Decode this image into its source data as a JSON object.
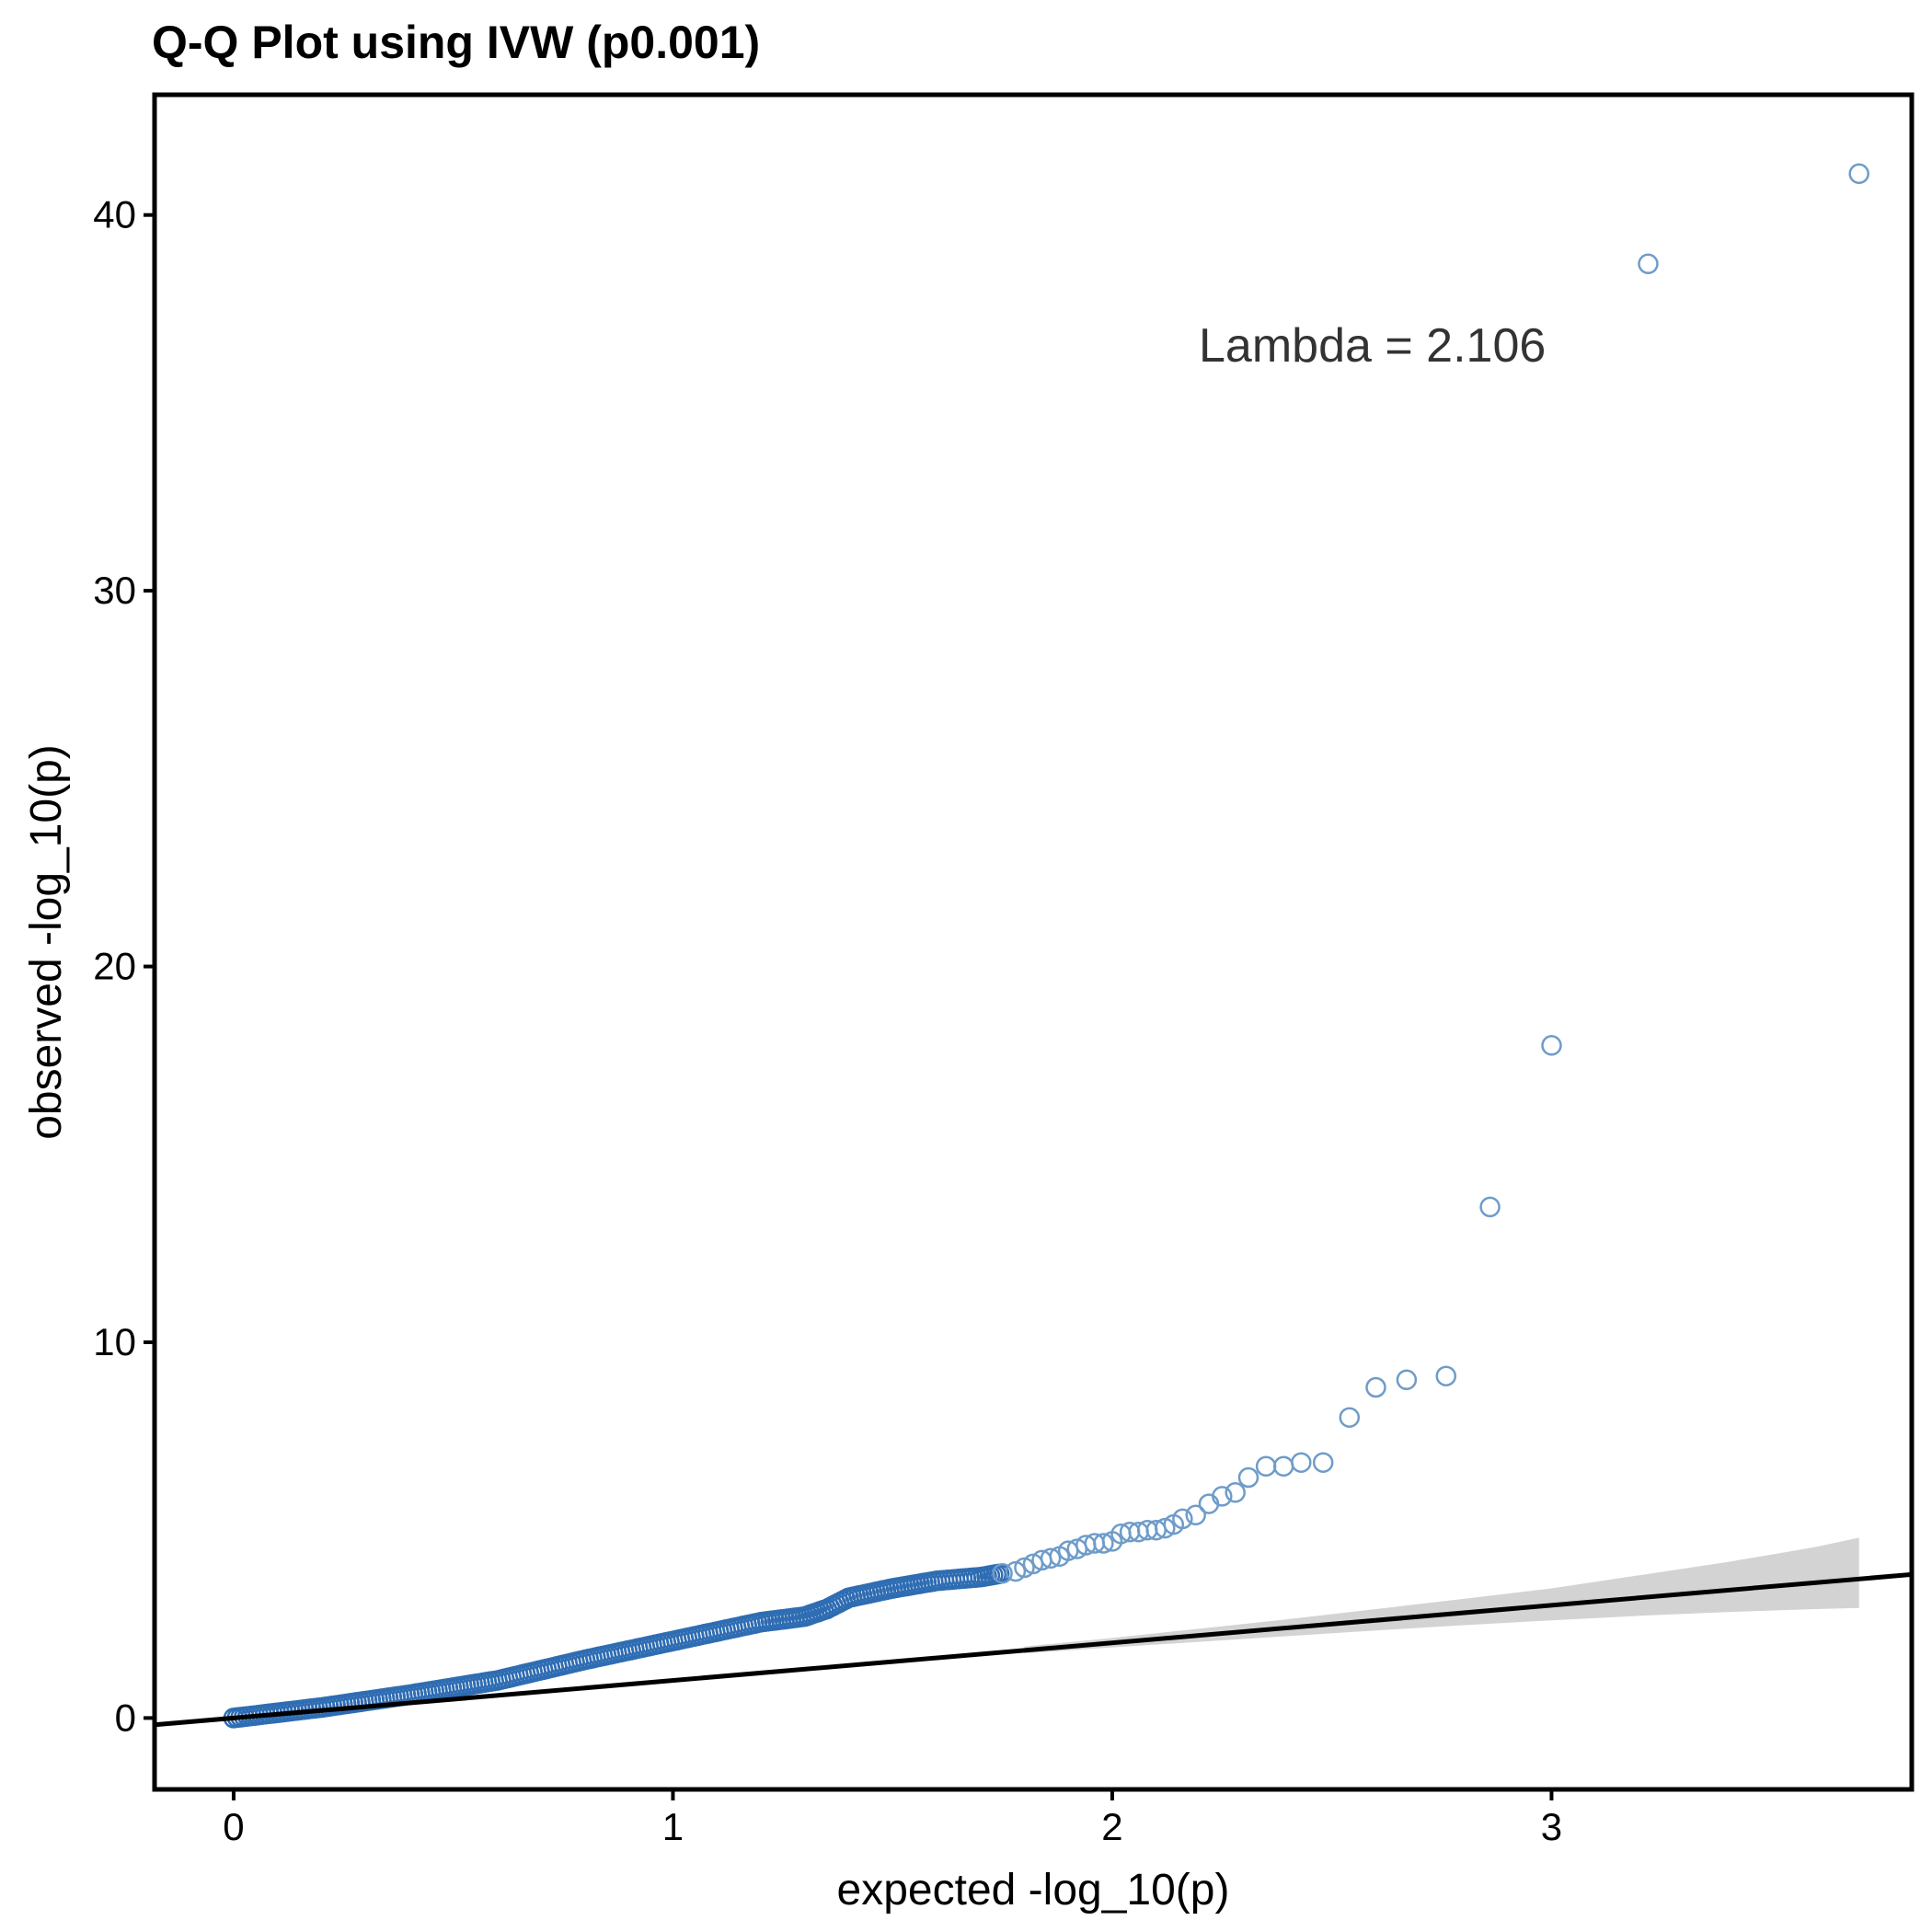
{
  "chart_data": {
    "type": "scatter",
    "title": "Q-Q Plot using IVW (p0.001)",
    "xlabel": "expected -log_10(p)",
    "ylabel": "observed -log_10(p)",
    "xlim": [
      -0.18,
      3.82
    ],
    "ylim": [
      -1.9,
      43.2
    ],
    "x_ticks": [
      "0",
      "1",
      "2",
      "3"
    ],
    "y_ticks": [
      "0",
      "10",
      "20",
      "30",
      "40"
    ],
    "annotation": "Lambda = 2.106",
    "point_color": "#2f6db3",
    "line_color": "#000000",
    "band_color": "#d3d3d3",
    "reference_line": {
      "x": [
        -0.18,
        3.82
      ],
      "y": [
        -0.18,
        3.82
      ]
    },
    "confidence_band": {
      "x": [
        1.8,
        2.0,
        2.2,
        2.4,
        2.6,
        2.8,
        3.0,
        3.2,
        3.4,
        3.6,
        3.7
      ],
      "lower": [
        1.72,
        1.88,
        2.03,
        2.18,
        2.33,
        2.47,
        2.6,
        2.72,
        2.82,
        2.9,
        2.93
      ],
      "upper": [
        1.9,
        2.13,
        2.38,
        2.63,
        2.9,
        3.17,
        3.45,
        3.8,
        4.15,
        4.55,
        4.8
      ]
    },
    "sparse_points": {
      "x": [
        1.75,
        1.78,
        1.8,
        1.82,
        1.84,
        1.86,
        1.88,
        1.9,
        1.92,
        1.94,
        1.96,
        1.98,
        2.0,
        2.02,
        2.04,
        2.06,
        2.08,
        2.1,
        2.12,
        2.14,
        2.16,
        2.19,
        2.22,
        2.25,
        2.28,
        2.31,
        2.35,
        2.39,
        2.43,
        2.48,
        2.54,
        2.6,
        2.67,
        2.76,
        2.86,
        3.0,
        3.22,
        3.7
      ],
      "y": [
        3.85,
        3.9,
        4.0,
        4.1,
        4.2,
        4.25,
        4.3,
        4.45,
        4.5,
        4.6,
        4.65,
        4.65,
        4.7,
        4.9,
        4.95,
        4.95,
        5.0,
        5.0,
        5.05,
        5.15,
        5.3,
        5.4,
        5.7,
        5.9,
        6.0,
        6.4,
        6.7,
        6.7,
        6.8,
        6.8,
        8.0,
        8.8,
        9.0,
        9.1,
        13.6,
        17.9,
        38.7,
        41.1
      ]
    },
    "dense_segments": {
      "x": [
        0.0,
        0.2,
        0.4,
        0.6,
        0.8,
        1.0,
        1.2,
        1.3,
        1.35,
        1.4,
        1.5,
        1.6,
        1.7,
        1.75
      ],
      "y": [
        0.0,
        0.28,
        0.62,
        1.0,
        1.55,
        2.05,
        2.55,
        2.7,
        2.9,
        3.2,
        3.45,
        3.65,
        3.75,
        3.85
      ]
    }
  }
}
